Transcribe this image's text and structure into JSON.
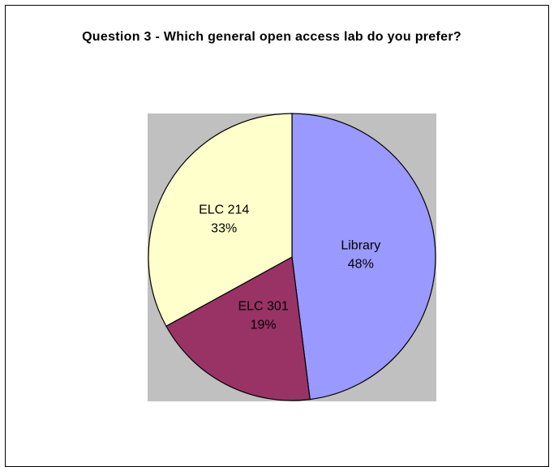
{
  "chart_data": {
    "type": "pie",
    "title": "Question 3 - Which general open access lab do you prefer?",
    "categories": [
      "Library",
      "ELC 301",
      "ELC 214"
    ],
    "values": [
      48,
      19,
      33
    ],
    "value_labels": [
      "48%",
      "19%",
      "33%"
    ],
    "colors": [
      "#9999FF",
      "#993366",
      "#FFFFCC"
    ],
    "plot_background": "#C0C0C0",
    "legend": "none",
    "start_angle_deg": 0,
    "direction": "clockwise"
  }
}
